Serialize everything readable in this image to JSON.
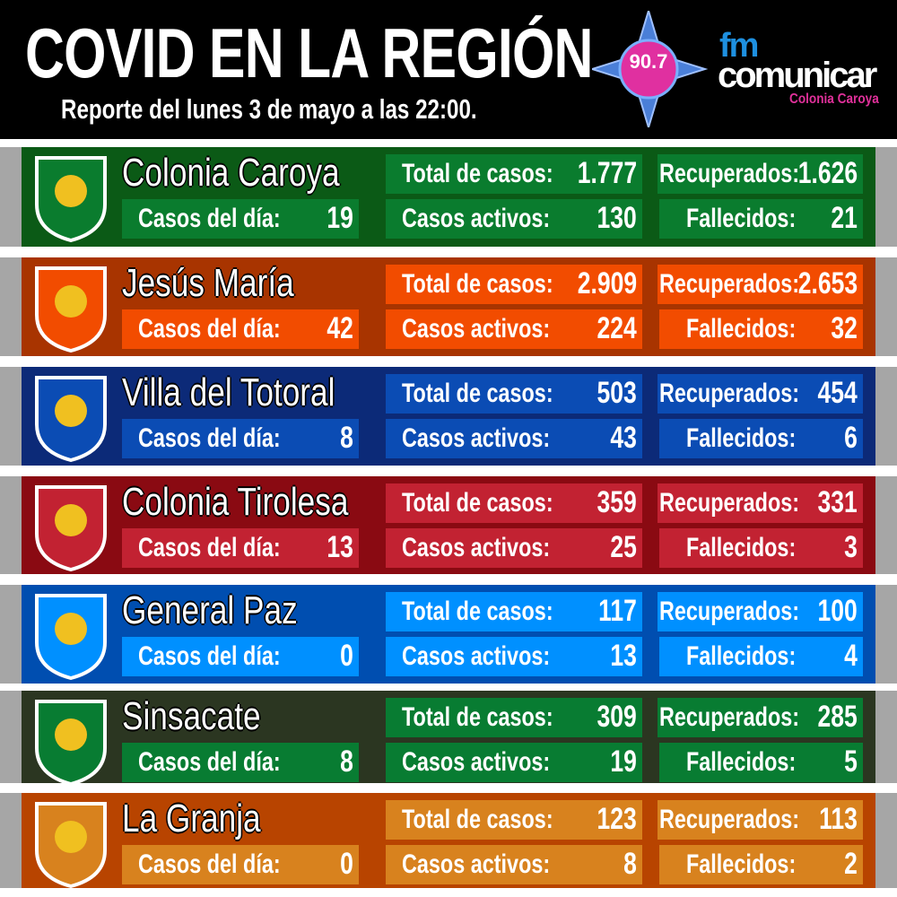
{
  "header": {
    "title": "COVID EN LA REGIÓN",
    "subtitle": "Reporte del lunes 3 de mayo a las 22:00.",
    "logo": {
      "frequency": "90.7",
      "fm": "fm",
      "brand": "comunicar",
      "location": "Colonia Caroya"
    }
  },
  "labels": {
    "daily": "Casos del día:",
    "total": "Total de casos:",
    "active": "Casos activos:",
    "recovered": "Recuperados:",
    "deaths": "Fallecidos:"
  },
  "towns": [
    {
      "name": "Colonia Caroya",
      "daily": "19",
      "total": "1.777",
      "active": "130",
      "recovered": "1.626",
      "deaths": "21",
      "bg": "#0b5a16",
      "box": "#0a7c2e"
    },
    {
      "name": "Jesús María",
      "daily": "42",
      "total": "2.909",
      "active": "224",
      "recovered": "2.653",
      "deaths": "32",
      "bg": "#a83400",
      "box": "#f24c00"
    },
    {
      "name": "Villa del Totoral",
      "daily": "8",
      "total": "503",
      "active": "43",
      "recovered": "454",
      "deaths": "6",
      "bg": "#0c2a78",
      "box": "#0b4cb4"
    },
    {
      "name": "Colonia Tirolesa",
      "daily": "13",
      "total": "359",
      "active": "25",
      "recovered": "331",
      "deaths": "3",
      "bg": "#8a0a12",
      "box": "#c22232"
    },
    {
      "name": "General Paz",
      "daily": "0",
      "total": "117",
      "active": "13",
      "recovered": "100",
      "deaths": "4",
      "bg": "#004eb0",
      "box": "#0090ff"
    },
    {
      "name": "Sinsacate",
      "daily": "8",
      "total": "309",
      "active": "19",
      "recovered": "285",
      "deaths": "5",
      "bg": "#2b3621",
      "box": "#087c32"
    },
    {
      "name": "La Granja",
      "daily": "0",
      "total": "123",
      "active": "8",
      "recovered": "113",
      "deaths": "2",
      "bg": "#b84400",
      "box": "#d8821e"
    }
  ]
}
